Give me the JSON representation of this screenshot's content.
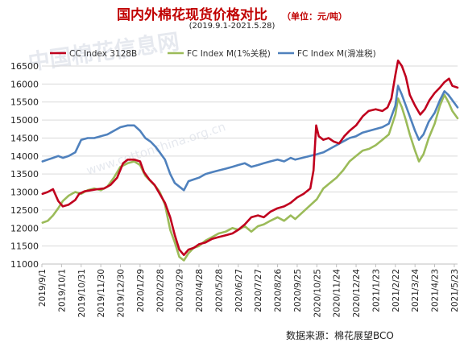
{
  "header": {
    "title": "国内外棉花现货价格对比",
    "unit": "（单位：元/吨）",
    "subtitle": "(2019.9.1-2021.5.28)"
  },
  "footer": {
    "source": "数据来源：棉花展望BCO"
  },
  "watermark": {
    "name": "中国棉花信息网",
    "url": "www.cottonchina.org.cn"
  },
  "colors": {
    "cc": "#c0001e",
    "fc1": "#9bbb59",
    "fc2": "#4f81bd",
    "grid": "#d9d9d9"
  },
  "chart_data": {
    "type": "line",
    "title": "国内外棉花现货价格对比",
    "ylim": [
      11000,
      16500
    ],
    "yticks": [
      11000,
      11500,
      12000,
      12500,
      13000,
      13500,
      14000,
      14500,
      15000,
      15500,
      16000,
      16500
    ],
    "x_start": "2019/9/1",
    "x_end": "2021/5/28",
    "xticks": [
      "2019/9/1",
      "2019/10/1",
      "2019/10/31",
      "2019/11/30",
      "2019/12/30",
      "2020/1/29",
      "2020/2/28",
      "2020/3/29",
      "2020/4/28",
      "2020/5/28",
      "2020/6/27",
      "2020/7/27",
      "2020/8/26",
      "2020/9/25",
      "2020/10/25",
      "2020/11/24",
      "2020/12/24",
      "2021/1/23",
      "2021/2/22",
      "2021/3/24",
      "2021/4/23",
      "2021/5/23"
    ],
    "grid": true,
    "legend_position": "top",
    "series": [
      {
        "name": "CC Index 3128B",
        "points": [
          [
            "2019/9/2",
            12950
          ],
          [
            "2019/9/10",
            13000
          ],
          [
            "2019/9/18",
            13080
          ],
          [
            "2019/9/26",
            12750
          ],
          [
            "2019/10/3",
            12600
          ],
          [
            "2019/10/12",
            12650
          ],
          [
            "2019/10/22",
            12780
          ],
          [
            "2019/10/28",
            12950
          ],
          [
            "2019/11/5",
            13020
          ],
          [
            "2019/11/15",
            13050
          ],
          [
            "2019/11/25",
            13080
          ],
          [
            "2019/12/5",
            13100
          ],
          [
            "2019/12/15",
            13200
          ],
          [
            "2019/12/25",
            13400
          ],
          [
            "2020/1/3",
            13800
          ],
          [
            "2020/1/10",
            13900
          ],
          [
            "2020/1/20",
            13900
          ],
          [
            "2020/1/29",
            13850
          ],
          [
            "2020/2/4",
            13550
          ],
          [
            "2020/2/12",
            13350
          ],
          [
            "2020/2/20",
            13200
          ],
          [
            "2020/2/28",
            12950
          ],
          [
            "2020/3/7",
            12700
          ],
          [
            "2020/3/15",
            12300
          ],
          [
            "2020/3/22",
            11800
          ],
          [
            "2020/3/29",
            11400
          ],
          [
            "2020/4/5",
            11250
          ],
          [
            "2020/4/12",
            11400
          ],
          [
            "2020/4/20",
            11450
          ],
          [
            "2020/4/28",
            11550
          ],
          [
            "2020/5/8",
            11600
          ],
          [
            "2020/5/18",
            11700
          ],
          [
            "2020/5/28",
            11750
          ],
          [
            "2020/6/8",
            11800
          ],
          [
            "2020/6/18",
            11850
          ],
          [
            "2020/6/27",
            11950
          ],
          [
            "2020/7/7",
            12100
          ],
          [
            "2020/7/17",
            12300
          ],
          [
            "2020/7/27",
            12350
          ],
          [
            "2020/8/5",
            12300
          ],
          [
            "2020/8/15",
            12450
          ],
          [
            "2020/8/26",
            12550
          ],
          [
            "2020/9/5",
            12600
          ],
          [
            "2020/9/15",
            12700
          ],
          [
            "2020/9/25",
            12850
          ],
          [
            "2020/10/5",
            12950
          ],
          [
            "2020/10/15",
            13100
          ],
          [
            "2020/10/20",
            13600
          ],
          [
            "2020/10/24",
            14850
          ],
          [
            "2020/10/28",
            14550
          ],
          [
            "2020/11/4",
            14450
          ],
          [
            "2020/11/12",
            14500
          ],
          [
            "2020/11/20",
            14400
          ],
          [
            "2020/11/28",
            14350
          ],
          [
            "2020/12/6",
            14550
          ],
          [
            "2020/12/14",
            14700
          ],
          [
            "2020/12/24",
            14850
          ],
          [
            "2021/1/3",
            15100
          ],
          [
            "2021/1/12",
            15250
          ],
          [
            "2021/1/23",
            15300
          ],
          [
            "2021/2/2",
            15250
          ],
          [
            "2021/2/10",
            15350
          ],
          [
            "2021/2/16",
            15600
          ],
          [
            "2021/2/22",
            16250
          ],
          [
            "2021/2/26",
            16650
          ],
          [
            "2021/3/4",
            16500
          ],
          [
            "2021/3/10",
            16200
          ],
          [
            "2021/3/16",
            15700
          ],
          [
            "2021/3/24",
            15400
          ],
          [
            "2021/4/1",
            15150
          ],
          [
            "2021/4/8",
            15300
          ],
          [
            "2021/4/15",
            15550
          ],
          [
            "2021/4/23",
            15750
          ],
          [
            "2021/5/1",
            15900
          ],
          [
            "2021/5/8",
            16050
          ],
          [
            "2021/5/15",
            16150
          ],
          [
            "2021/5/20",
            15950
          ],
          [
            "2021/5/28",
            15900
          ]
        ]
      },
      {
        "name": "FC Index M(1%关税)",
        "points": [
          [
            "2019/9/2",
            12150
          ],
          [
            "2019/9/10",
            12200
          ],
          [
            "2019/9/18",
            12350
          ],
          [
            "2019/9/26",
            12550
          ],
          [
            "2019/10/3",
            12750
          ],
          [
            "2019/10/12",
            12900
          ],
          [
            "2019/10/22",
            13000
          ],
          [
            "2019/10/31",
            12950
          ],
          [
            "2019/11/10",
            13050
          ],
          [
            "2019/11/20",
            13100
          ],
          [
            "2019/11/30",
            13050
          ],
          [
            "2019/12/10",
            13150
          ],
          [
            "2019/12/20",
            13400
          ],
          [
            "2019/12/30",
            13700
          ],
          [
            "2020/1/10",
            13800
          ],
          [
            "2020/1/20",
            13850
          ],
          [
            "2020/1/29",
            13750
          ],
          [
            "2020/2/6",
            13450
          ],
          [
            "2020/2/14",
            13300
          ],
          [
            "2020/2/22",
            13150
          ],
          [
            "2020/2/28",
            13000
          ],
          [
            "2020/3/7",
            12650
          ],
          [
            "2020/3/15",
            11950
          ],
          [
            "2020/3/22",
            11600
          ],
          [
            "2020/3/29",
            11200
          ],
          [
            "2020/4/5",
            11100
          ],
          [
            "2020/4/12",
            11300
          ],
          [
            "2020/4/20",
            11450
          ],
          [
            "2020/4/28",
            11500
          ],
          [
            "2020/5/8",
            11650
          ],
          [
            "2020/5/18",
            11750
          ],
          [
            "2020/5/28",
            11850
          ],
          [
            "2020/6/8",
            11900
          ],
          [
            "2020/6/18",
            12000
          ],
          [
            "2020/6/27",
            11950
          ],
          [
            "2020/7/7",
            12050
          ],
          [
            "2020/7/17",
            11900
          ],
          [
            "2020/7/27",
            12050
          ],
          [
            "2020/8/5",
            12100
          ],
          [
            "2020/8/15",
            12200
          ],
          [
            "2020/8/26",
            12300
          ],
          [
            "2020/9/5",
            12200
          ],
          [
            "2020/9/15",
            12350
          ],
          [
            "2020/9/22",
            12250
          ],
          [
            "2020/10/25",
            12800
          ],
          [
            "2020/11/4",
            13100
          ],
          [
            "2020/11/14",
            13250
          ],
          [
            "2020/11/24",
            13400
          ],
          [
            "2020/12/4",
            13600
          ],
          [
            "2020/12/14",
            13850
          ],
          [
            "2020/12/24",
            14000
          ],
          [
            "2021/1/3",
            14150
          ],
          [
            "2021/1/13",
            14200
          ],
          [
            "2021/1/23",
            14300
          ],
          [
            "2021/2/2",
            14450
          ],
          [
            "2021/2/12",
            14600
          ],
          [
            "2021/2/22",
            15150
          ],
          [
            "2021/2/26",
            15600
          ],
          [
            "2021/3/4",
            15350
          ],
          [
            "2021/3/10",
            15000
          ],
          [
            "2021/3/16",
            14600
          ],
          [
            "2021/3/24",
            14150
          ],
          [
            "2021/3/30",
            13850
          ],
          [
            "2021/4/6",
            14050
          ],
          [
            "2021/4/14",
            14500
          ],
          [
            "2021/4/23",
            14900
          ],
          [
            "2021/5/1",
            15400
          ],
          [
            "2021/5/8",
            15700
          ],
          [
            "2021/5/14",
            15500
          ],
          [
            "2021/5/20",
            15250
          ],
          [
            "2021/5/28",
            15050
          ]
        ]
      },
      {
        "name": "FC Index M(滑准税)",
        "points": [
          [
            "2019/9/2",
            13850
          ],
          [
            "2019/9/10",
            13900
          ],
          [
            "2019/9/18",
            13950
          ],
          [
            "2019/9/26",
            14000
          ],
          [
            "2019/10/3",
            13950
          ],
          [
            "2019/10/12",
            14000
          ],
          [
            "2019/10/22",
            14100
          ],
          [
            "2019/10/31",
            14450
          ],
          [
            "2019/11/10",
            14500
          ],
          [
            "2019/11/20",
            14500
          ],
          [
            "2019/11/30",
            14550
          ],
          [
            "2019/12/10",
            14600
          ],
          [
            "2019/12/20",
            14700
          ],
          [
            "2019/12/30",
            14800
          ],
          [
            "2020/1/10",
            14850
          ],
          [
            "2020/1/20",
            14850
          ],
          [
            "2020/1/29",
            14700
          ],
          [
            "2020/2/6",
            14500
          ],
          [
            "2020/2/14",
            14400
          ],
          [
            "2020/2/22",
            14250
          ],
          [
            "2020/2/28",
            14100
          ],
          [
            "2020/3/7",
            13900
          ],
          [
            "2020/3/15",
            13500
          ],
          [
            "2020/3/22",
            13250
          ],
          [
            "2020/3/29",
            13150
          ],
          [
            "2020/4/5",
            13050
          ],
          [
            "2020/4/12",
            13300
          ],
          [
            "2020/4/20",
            13350
          ],
          [
            "2020/4/28",
            13400
          ],
          [
            "2020/5/8",
            13500
          ],
          [
            "2020/5/18",
            13550
          ],
          [
            "2020/5/28",
            13600
          ],
          [
            "2020/6/8",
            13650
          ],
          [
            "2020/6/18",
            13700
          ],
          [
            "2020/6/27",
            13750
          ],
          [
            "2020/7/7",
            13800
          ],
          [
            "2020/7/17",
            13700
          ],
          [
            "2020/7/27",
            13750
          ],
          [
            "2020/8/5",
            13800
          ],
          [
            "2020/8/15",
            13850
          ],
          [
            "2020/8/26",
            13900
          ],
          [
            "2020/9/5",
            13850
          ],
          [
            "2020/9/15",
            13950
          ],
          [
            "2020/9/22",
            13900
          ],
          [
            "2020/10/25",
            14050
          ],
          [
            "2020/11/4",
            14100
          ],
          [
            "2020/11/14",
            14200
          ],
          [
            "2020/11/24",
            14300
          ],
          [
            "2020/12/4",
            14400
          ],
          [
            "2020/12/14",
            14500
          ],
          [
            "2020/12/24",
            14550
          ],
          [
            "2021/1/3",
            14650
          ],
          [
            "2021/1/13",
            14700
          ],
          [
            "2021/1/23",
            14750
          ],
          [
            "2021/2/2",
            14800
          ],
          [
            "2021/2/12",
            14900
          ],
          [
            "2021/2/22",
            15400
          ],
          [
            "2021/2/26",
            15950
          ],
          [
            "2021/3/4",
            15700
          ],
          [
            "2021/3/10",
            15400
          ],
          [
            "2021/3/16",
            15100
          ],
          [
            "2021/3/24",
            14700
          ],
          [
            "2021/3/30",
            14450
          ],
          [
            "2021/4/6",
            14600
          ],
          [
            "2021/4/14",
            14950
          ],
          [
            "2021/4/23",
            15200
          ],
          [
            "2021/5/1",
            15550
          ],
          [
            "2021/5/8",
            15800
          ],
          [
            "2021/5/14",
            15700
          ],
          [
            "2021/5/20",
            15550
          ],
          [
            "2021/5/28",
            15350
          ]
        ]
      }
    ]
  }
}
